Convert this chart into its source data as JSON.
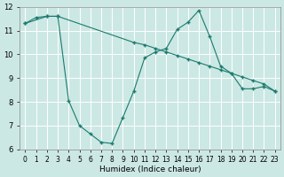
{
  "xlabel": "Humidex (Indice chaleur)",
  "bg_color": "#cce8e4",
  "line_color": "#1a7a6e",
  "grid_color": "#ffffff",
  "xlim": [
    -0.5,
    23.5
  ],
  "ylim": [
    6,
    12
  ],
  "xticks": [
    0,
    1,
    2,
    3,
    4,
    5,
    6,
    7,
    8,
    9,
    10,
    11,
    12,
    13,
    14,
    15,
    16,
    17,
    18,
    19,
    20,
    21,
    22,
    23
  ],
  "yticks": [
    6,
    7,
    8,
    9,
    10,
    11,
    12
  ],
  "series1_x": [
    0,
    1,
    2,
    3,
    4,
    5,
    6,
    7,
    8,
    9,
    10,
    11,
    12,
    13,
    14,
    15,
    16,
    17,
    18,
    19,
    20,
    21,
    22,
    23
  ],
  "series1_y": [
    11.3,
    11.55,
    11.6,
    11.6,
    8.05,
    7.0,
    6.65,
    6.3,
    6.25,
    7.35,
    8.45,
    9.85,
    10.1,
    10.25,
    11.05,
    11.35,
    11.85,
    10.75,
    9.5,
    9.2,
    8.55,
    8.55,
    8.65,
    8.45
  ],
  "series2_x": [
    0,
    2,
    3,
    10,
    11,
    12,
    13,
    14,
    15,
    16,
    17,
    18,
    19,
    20,
    21,
    22,
    23
  ],
  "series2_y": [
    11.3,
    11.6,
    11.6,
    10.5,
    10.4,
    10.25,
    10.1,
    9.95,
    9.8,
    9.65,
    9.5,
    9.35,
    9.2,
    9.05,
    8.9,
    8.75,
    8.45
  ],
  "xlabel_fontsize": 6.5,
  "tick_fontsize": 5.5
}
